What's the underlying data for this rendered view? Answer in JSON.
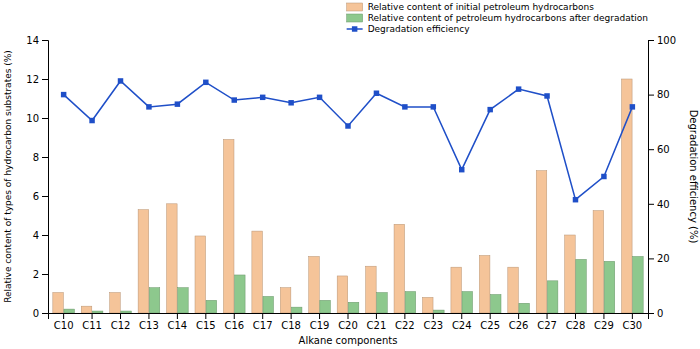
{
  "chart_data": {
    "type": "bar",
    "xlabel": "Alkane components",
    "ylabel": "Relative content of types of hydrocarbon substrates (%)",
    "y2label": "Degradation efficiency (%)",
    "categories": [
      "C10",
      "C11",
      "C12",
      "C13",
      "C14",
      "C15",
      "C16",
      "C17",
      "C18",
      "C19",
      "C20",
      "C21",
      "C22",
      "C23",
      "C24",
      "C25",
      "C26",
      "C27",
      "C28",
      "C29",
      "C30"
    ],
    "series": [
      {
        "name": "Relative content of initial petroleum hydrocarbons",
        "color": "#f5c499",
        "values": [
          1.05,
          0.35,
          1.05,
          5.3,
          5.6,
          3.95,
          8.9,
          4.2,
          1.3,
          2.9,
          1.9,
          2.4,
          4.55,
          0.8,
          2.35,
          2.95,
          2.35,
          7.3,
          4.0,
          5.25,
          12.0
        ]
      },
      {
        "name": "Relative content of petroleum hydrocarbons after degradation",
        "color": "#8dc88d",
        "values": [
          0.2,
          0.1,
          0.1,
          1.3,
          1.3,
          0.65,
          1.95,
          0.85,
          0.3,
          0.65,
          0.55,
          1.05,
          1.1,
          0.15,
          1.1,
          0.95,
          0.5,
          1.65,
          2.75,
          2.65,
          2.9
        ]
      },
      {
        "name": "Degradation efficiency",
        "type": "line",
        "axis": "y2",
        "color": "#1f4fc8",
        "marker": "square",
        "values": [
          80.0,
          70.5,
          85.0,
          75.5,
          76.5,
          84.5,
          78.0,
          79.0,
          77.0,
          79.0,
          68.5,
          80.5,
          75.5,
          75.5,
          52.5,
          74.5,
          82.0,
          79.5,
          41.5,
          50.0,
          75.5
        ]
      }
    ],
    "ylim": [
      0,
      14
    ],
    "yticks": [
      0,
      2,
      4,
      6,
      8,
      10,
      12,
      14
    ],
    "y2lim": [
      0,
      100
    ],
    "y2ticks": [
      0,
      20,
      40,
      60,
      80,
      100
    ],
    "legend": "upper right"
  }
}
